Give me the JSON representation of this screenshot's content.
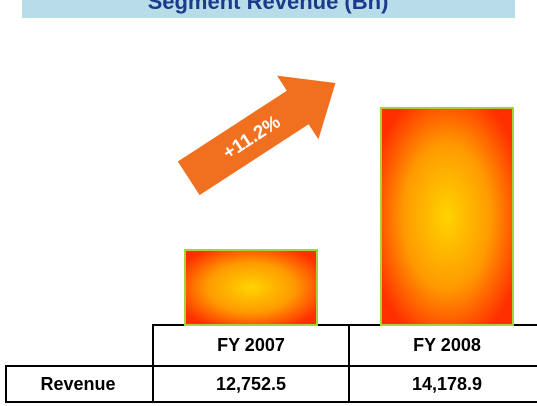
{
  "chart_data": {
    "type": "bar",
    "title": "Segment Revenue (Bn)",
    "categories": [
      "FY 2007",
      "FY 2008"
    ],
    "series": [
      {
        "name": "Revenue",
        "values": [
          12752.5,
          14178.9
        ],
        "value_labels": [
          "12,752.5",
          "14,178.9"
        ]
      }
    ],
    "ylim": [
      12000,
      14700
    ],
    "annotations": [
      "+11.2%"
    ]
  }
}
